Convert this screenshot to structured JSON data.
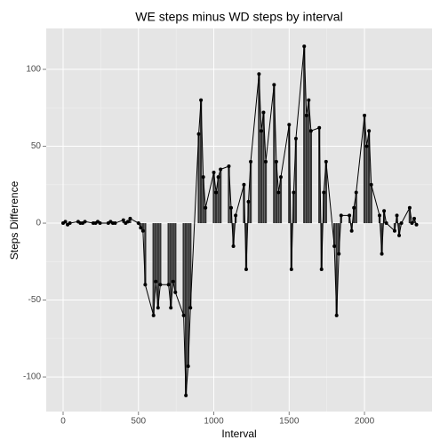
{
  "chart_data": {
    "type": "bar_line",
    "title": "WE steps minus WD steps by interval",
    "x_label": "Interval",
    "y_label": "Steps Difference",
    "x": [
      0,
      15,
      30,
      45,
      100,
      115,
      130,
      145,
      200,
      215,
      230,
      245,
      300,
      315,
      330,
      345,
      400,
      415,
      430,
      445,
      500,
      515,
      530,
      545,
      600,
      615,
      630,
      645,
      700,
      715,
      730,
      745,
      800,
      815,
      830,
      845,
      900,
      915,
      930,
      945,
      1000,
      1015,
      1030,
      1045,
      1100,
      1115,
      1130,
      1145,
      1200,
      1215,
      1230,
      1245,
      1300,
      1315,
      1330,
      1345,
      1400,
      1415,
      1430,
      1445,
      1500,
      1515,
      1530,
      1545,
      1600,
      1615,
      1630,
      1645,
      1700,
      1715,
      1730,
      1745,
      1800,
      1815,
      1830,
      1845,
      1900,
      1915,
      1930,
      1945,
      2000,
      2015,
      2030,
      2045,
      2100,
      2115,
      2130,
      2145,
      2200,
      2215,
      2230,
      2245,
      2300,
      2315,
      2330,
      2345
    ],
    "values": [
      0,
      1,
      -1,
      0,
      1,
      0,
      0,
      1,
      0,
      0,
      1,
      0,
      0,
      1,
      0,
      0,
      2,
      0,
      1,
      3,
      0,
      -3,
      -5,
      -40,
      -60,
      -38,
      -55,
      -40,
      -40,
      -55,
      -38,
      -45,
      -60,
      -112,
      -93,
      -55,
      58,
      80,
      30,
      10,
      33,
      20,
      30,
      35,
      37,
      10,
      -15,
      5,
      25,
      -30,
      14,
      40,
      97,
      60,
      72,
      40,
      90,
      40,
      20,
      30,
      64,
      -30,
      20,
      55,
      115,
      70,
      80,
      60,
      62,
      -30,
      20,
      40,
      -15,
      -60,
      -20,
      5,
      5,
      -5,
      10,
      20,
      70,
      50,
      60,
      25,
      5,
      -20,
      8,
      0,
      -5,
      5,
      -8,
      0,
      10,
      0,
      3,
      -1
    ],
    "color": "#333333",
    "xlim": [
      -112,
      2448
    ],
    "ylim": [
      -122.5,
      126.6
    ],
    "xticks": [
      0,
      500,
      1000,
      1500,
      2000
    ],
    "yticks": [
      -100,
      -50,
      0,
      50,
      100
    ],
    "grid": true
  }
}
